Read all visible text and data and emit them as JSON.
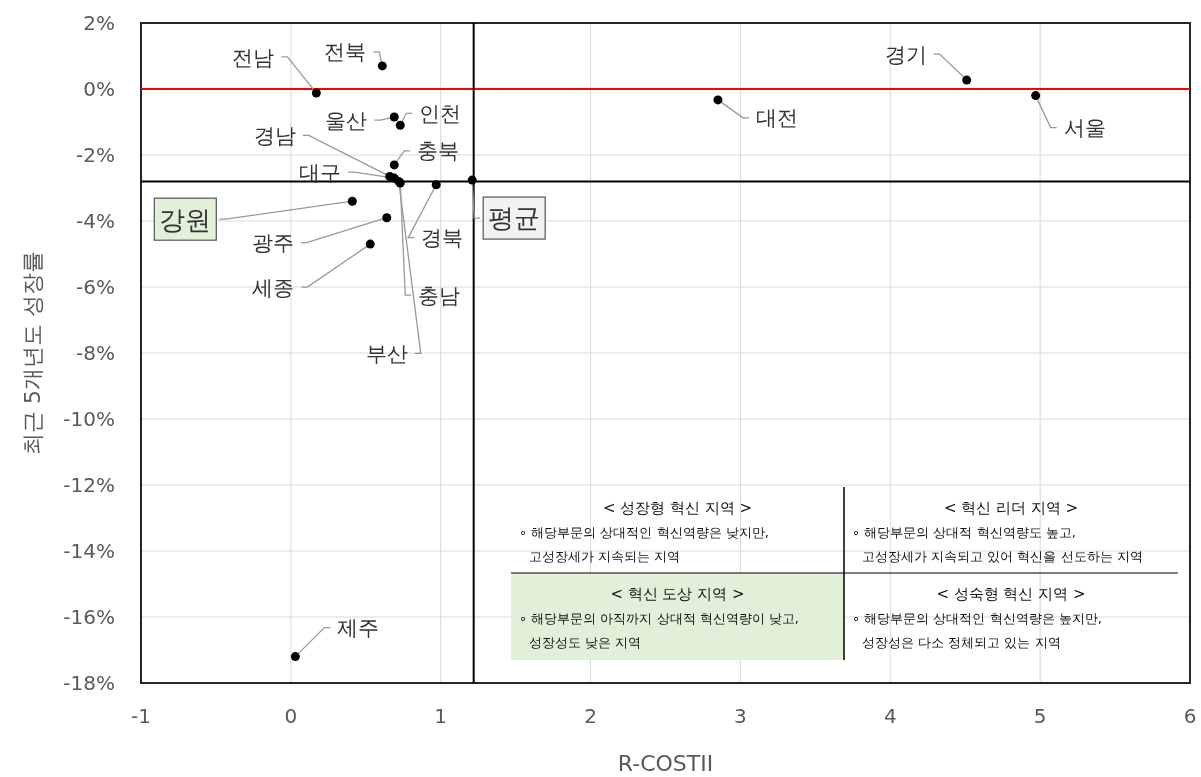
{
  "chart_data": {
    "type": "scatter",
    "xlabel": "R-COSTII",
    "ylabel": "최근 5개년도 성장률",
    "series": [
      {
        "color": "#000000",
        "x": [
          0.61,
          0.17,
          0.69,
          0.73,
          0.66,
          0.69,
          0.69,
          0.73,
          0.72,
          0.97,
          0.64,
          0.53,
          0.41,
          1.21,
          0.03,
          2.85,
          4.51,
          4.97
        ],
        "values": [
          0.7,
          -0.12,
          -0.85,
          -1.1,
          -2.65,
          -2.7,
          -2.3,
          -2.85,
          -2.8,
          -2.9,
          -3.9,
          -4.7,
          -3.4,
          -2.76,
          -17.2,
          -0.33,
          0.27,
          -0.2
        ]
      }
    ],
    "xlim": [
      -1,
      6
    ],
    "xticks": [
      -1,
      0,
      1,
      2,
      3,
      4,
      5,
      6
    ],
    "ylim": [
      -18,
      2
    ],
    "yticks": [
      {
        "value": -18,
        "label": "-18%"
      },
      {
        "value": -16,
        "label": "-16%"
      },
      {
        "value": -14,
        "label": "-14%"
      },
      {
        "value": -12,
        "label": "-12%"
      },
      {
        "value": -10,
        "label": "-10%"
      },
      {
        "value": -8,
        "label": "-8%"
      },
      {
        "value": -6,
        "label": "-6%"
      },
      {
        "value": -4,
        "label": "-4%"
      },
      {
        "value": -2,
        "label": "-2%"
      },
      {
        "value": 0,
        "label": "0%"
      },
      {
        "value": 2,
        "label": "2%"
      }
    ],
    "grid": true,
    "marker": "circle",
    "ref_lines": [
      {
        "axis": "y",
        "value": 0,
        "color": "#ff0000"
      },
      {
        "axis": "y",
        "value": -2.8,
        "color": "#000000"
      },
      {
        "axis": "x",
        "value": 1.22,
        "color": "#000000"
      }
    ],
    "annotations": [
      {
        "text": "전북",
        "x": 0.61,
        "y": 0.7
      },
      {
        "text": "전남",
        "x": 0.17,
        "y": -0.12
      },
      {
        "text": "울산",
        "x": 0.69,
        "y": -0.85
      },
      {
        "text": "인천",
        "x": 0.73,
        "y": -1.1
      },
      {
        "text": "경남",
        "x": 0.66,
        "y": -2.65
      },
      {
        "text": "대구",
        "x": 0.69,
        "y": -2.7
      },
      {
        "text": "충북",
        "x": 0.69,
        "y": -2.3
      },
      {
        "text": "충남",
        "x": 0.73,
        "y": -2.85
      },
      {
        "text": "부산",
        "x": 0.72,
        "y": -2.8
      },
      {
        "text": "경북",
        "x": 0.97,
        "y": -2.9
      },
      {
        "text": "광주",
        "x": 0.64,
        "y": -3.9
      },
      {
        "text": "세종",
        "x": 0.53,
        "y": -4.7
      },
      {
        "text": "강원",
        "x": 0.41,
        "y": -3.4
      },
      {
        "text": "평균",
        "x": 1.21,
        "y": -2.76
      },
      {
        "text": "제주",
        "x": 0.03,
        "y": -17.2
      },
      {
        "text": "대전",
        "x": 2.85,
        "y": -0.33
      },
      {
        "text": "경기",
        "x": 4.51,
        "y": 0.27
      },
      {
        "text": "서울",
        "x": 4.97,
        "y": -0.2
      },
      "< 성장형 혁신 지역 >",
      "∘ 해당부문의 상대적인 혁신역량은 낮지만,",
      "고성장세가 지속되는 지역",
      "< 혁신 리더 지역 >",
      "∘ 해당부문의 상대적 혁신역량도 높고,",
      "고성장세가 지속되고 있어 혁신을 선도하는 지역",
      "< 혁신 도상 지역 >",
      "∘ 해당부문의 아직까지 상대적 혁신역량이 낮고,",
      "성장성도 낮은 지역",
      "< 성숙형 혁신 지역 >",
      "∘ 해당부문의 상대적인 혁신역량은 높지만,",
      "성장성은 다소 정체되고 있는 지역"
    ]
  }
}
